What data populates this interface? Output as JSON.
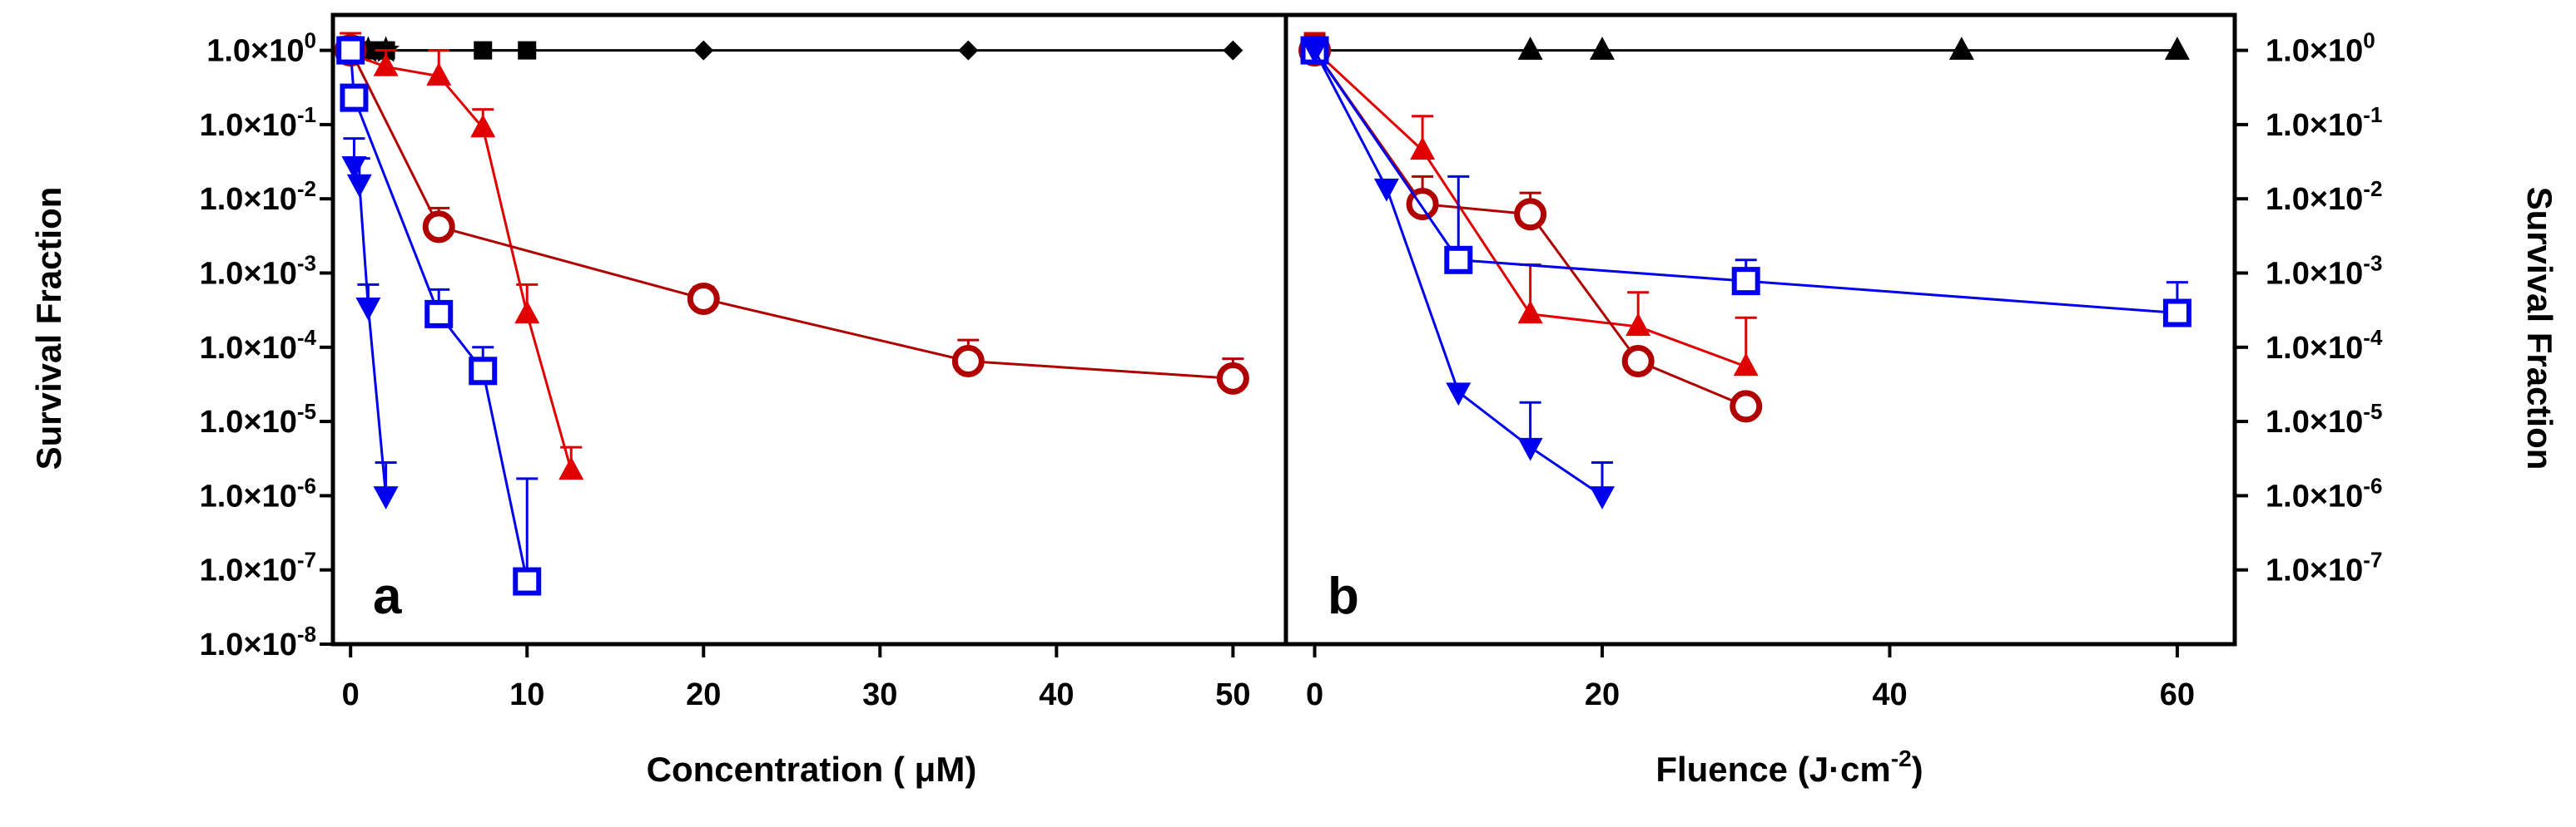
{
  "figure": {
    "title": ""
  },
  "colors": {
    "red": "#e00000",
    "dark_red": "#b00000",
    "blue": "#0000ee",
    "black": "#000000"
  },
  "chart_data": [
    {
      "panel": "a",
      "type": "scatter",
      "line": true,
      "xlabel_main": "Concentration ( μM)",
      "ylabel": "Survival Fraction",
      "yscale": "log",
      "xlim": [
        -1,
        53
      ],
      "ylim": [
        1e-08,
        3
      ],
      "xticks": [
        0,
        10,
        20,
        30,
        40,
        50
      ],
      "xtick_labels": [
        "0",
        "10",
        "20",
        "30",
        "40",
        "50"
      ],
      "yticks_exp": [
        0,
        -1,
        -2,
        -3,
        -4,
        -5,
        -6,
        -7,
        -8
      ],
      "ytick_labels": [
        "1.0×10^0",
        "1.0×10^-1",
        "1.0×10^-2",
        "1.0×10^-3",
        "1.0×10^-4",
        "1.0×10^-5",
        "1.0×10^-6",
        "1.0×10^-7",
        "1.0×10^-8"
      ],
      "series": [
        {
          "name": "black diamonds (dark control)",
          "color": "black",
          "marker": "diamond",
          "x": [
            0,
            2,
            20,
            35,
            50
          ],
          "y": [
            1,
            1,
            1,
            1,
            1
          ],
          "err_up": [
            null,
            null,
            null,
            null,
            null
          ]
        },
        {
          "name": "black squares (dark control)",
          "color": "black",
          "marker": "square",
          "x": [
            0,
            0.5,
            1,
            2,
            7.5,
            10
          ],
          "y": [
            1,
            1,
            1,
            1,
            1,
            1
          ],
          "err_up": [
            null,
            null,
            null,
            null,
            null,
            null
          ]
        },
        {
          "name": "black stars (dark control)",
          "color": "black",
          "marker": "star",
          "x": [
            0.5,
            1,
            2
          ],
          "y": [
            1,
            1,
            1
          ],
          "err_up": [
            null,
            null,
            null
          ]
        },
        {
          "name": "red triangles",
          "color": "red",
          "marker": "triangle-up",
          "x": [
            0,
            2,
            5,
            7.5,
            10,
            12.5
          ],
          "y": [
            0.9,
            0.6,
            0.45,
            0.09,
            0.00028,
            2.2e-06
          ],
          "err_up": [
            1.7,
            1.0,
            1.0,
            0.16,
            0.0007,
            4.5e-06
          ]
        },
        {
          "name": "dark red circles",
          "color": "dark_red",
          "marker": "circle-open",
          "x": [
            0,
            5,
            20,
            35,
            50
          ],
          "y": [
            1,
            0.0042,
            0.00045,
            6.5e-05,
            3.8e-05
          ],
          "err_up": [
            1.5,
            0.0075,
            0.00065,
            0.000125,
            7e-05
          ]
        },
        {
          "name": "blue squares",
          "color": "blue",
          "marker": "square-open",
          "x": [
            0,
            0.2,
            5,
            7.5,
            10
          ],
          "y": [
            1,
            0.23,
            0.00028,
            4.8e-05,
            7e-08
          ],
          "err_up": [
            1.5,
            null,
            0.0006,
            0.0001,
            1.7e-06
          ]
        },
        {
          "name": "blue inverted triangles",
          "color": "blue",
          "marker": "triangle-down",
          "x": [
            0.2,
            0.5,
            1,
            2
          ],
          "y": [
            0.028,
            0.016,
            0.00035,
            1e-06
          ],
          "err_up": [
            0.065,
            0.035,
            0.0007,
            2.8e-06
          ]
        }
      ]
    },
    {
      "panel": "b",
      "type": "scatter",
      "line": true,
      "xlabel_main": "Fluence (J·cm",
      "xlabel_sup": "-2",
      "xlabel_end": ")",
      "ylabel": "Survival Fraction",
      "yscale": "log",
      "xlim": [
        -2,
        64
      ],
      "ylim": [
        1e-08,
        3
      ],
      "xticks": [
        0,
        20,
        40,
        60
      ],
      "xtick_labels": [
        "0",
        "20",
        "40",
        "60"
      ],
      "yticks_exp": [
        0,
        -1,
        -2,
        -3,
        -4,
        -5,
        -6,
        -7
      ],
      "ytick_labels": [
        "1.0×10^0",
        "1.0×10^-1",
        "1.0×10^-2",
        "1.0×10^-3",
        "1.0×10^-4",
        "1.0×10^-5",
        "1.0×10^-6",
        "1.0×10^-7"
      ],
      "series": [
        {
          "name": "black triangles (control)",
          "color": "black",
          "marker": "triangle-up",
          "x": [
            0,
            15,
            20,
            45,
            60
          ],
          "y": [
            1,
            1,
            1,
            1,
            1
          ],
          "err_up": [
            null,
            null,
            null,
            null,
            null
          ]
        },
        {
          "name": "red triangles",
          "color": "red",
          "marker": "triangle-up",
          "x": [
            0,
            7.5,
            15,
            22.5,
            30
          ],
          "y": [
            1,
            0.045,
            0.00028,
            0.00019,
            5.5e-05
          ],
          "err_up": [
            1.7,
            0.13,
            0.0013,
            0.00055,
            0.00025
          ]
        },
        {
          "name": "dark red circles",
          "color": "dark_red",
          "marker": "circle-open",
          "x": [
            0,
            7.5,
            15,
            22.5,
            30
          ],
          "y": [
            1,
            0.0085,
            0.0062,
            6.5e-05,
            1.6e-05
          ],
          "err_up": [
            1.6,
            0.02,
            0.012,
            null,
            null
          ]
        },
        {
          "name": "blue squares",
          "color": "blue",
          "marker": "square-open",
          "x": [
            0,
            10,
            30,
            60
          ],
          "y": [
            1,
            0.0015,
            0.00078,
            0.00029
          ],
          "err_up": [
            1.5,
            0.02,
            0.0015,
            0.00075
          ]
        },
        {
          "name": "blue inverted triangles",
          "color": "blue",
          "marker": "triangle-down",
          "x": [
            0,
            5,
            10,
            15,
            20
          ],
          "y": [
            1,
            0.014,
            2.5e-05,
            4.5e-06,
            1e-06
          ],
          "err_up": [
            1.2,
            null,
            null,
            1.8e-05,
            2.8e-06
          ]
        }
      ]
    }
  ]
}
